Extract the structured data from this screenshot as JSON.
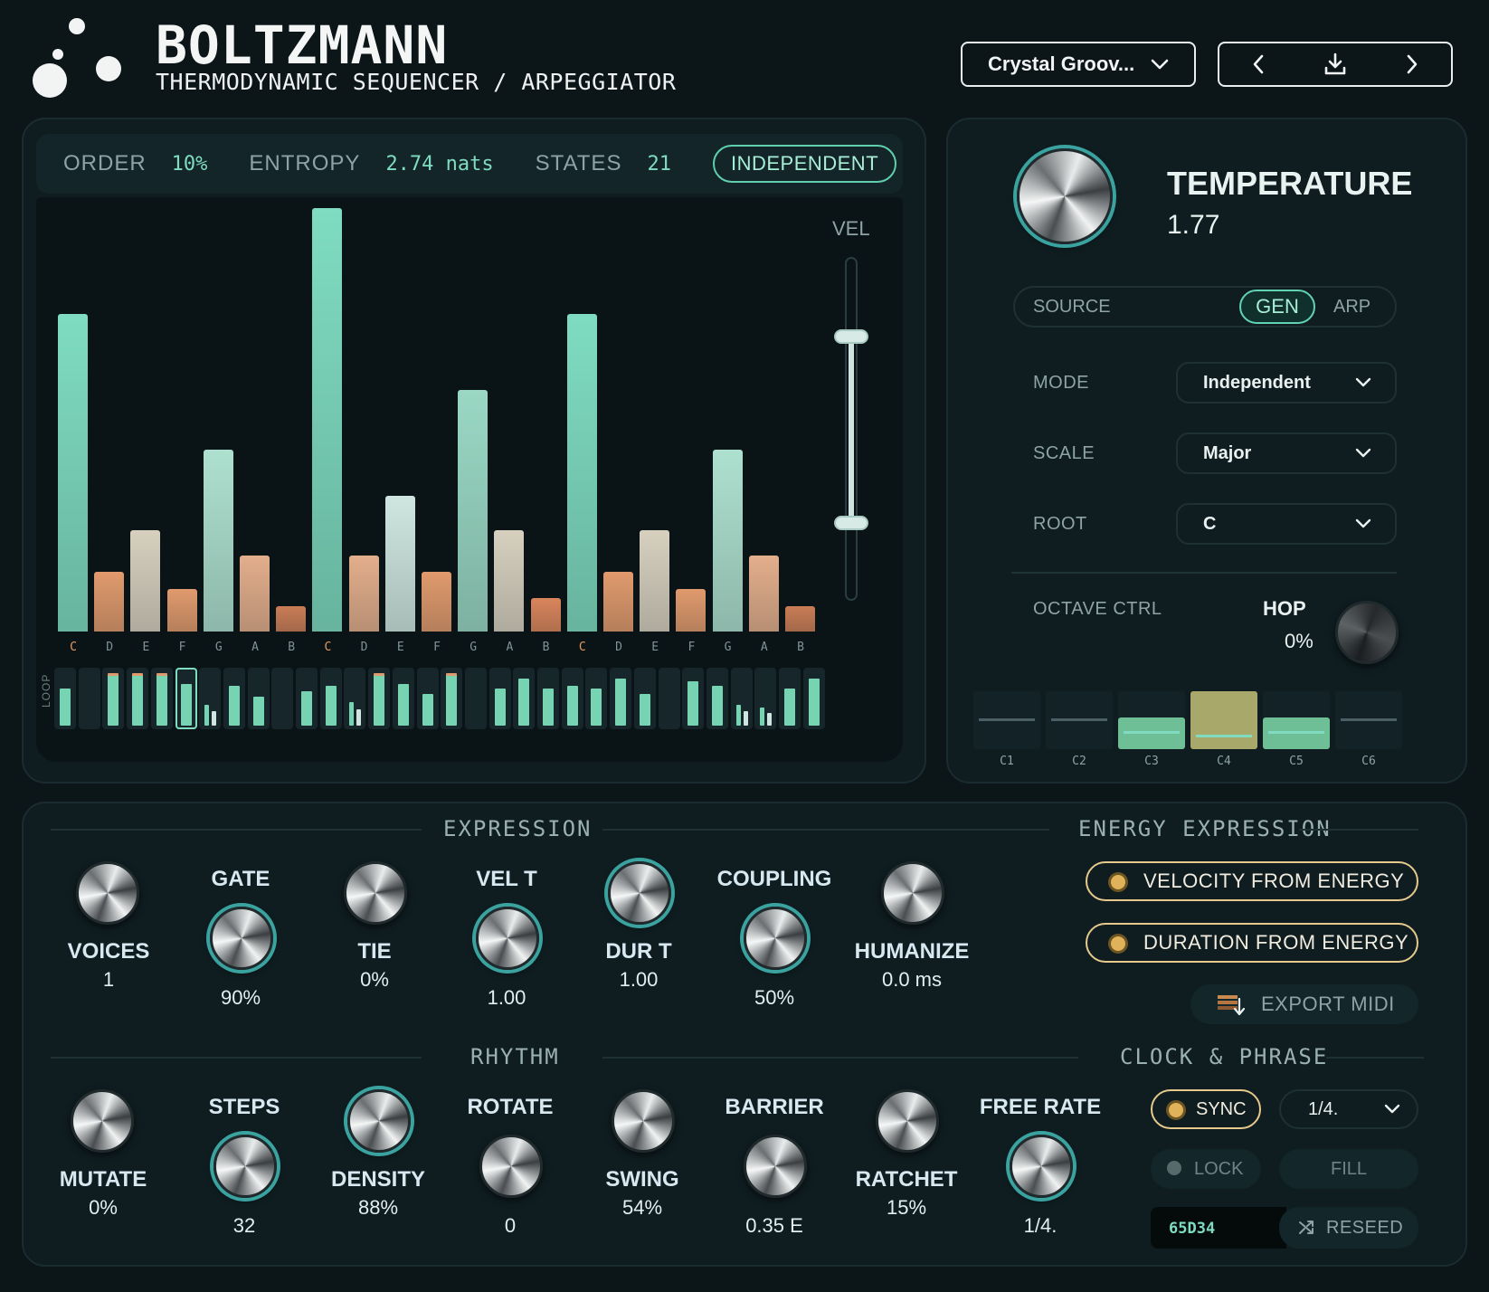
{
  "header": {
    "brand": "BOLTZMANN",
    "subtitle": "THERMODYNAMIC SEQUENCER / ARPEGGIATOR",
    "preset": "Crystal Groov...",
    "icons": [
      "chevron-down-icon",
      "chevron-left-icon",
      "download-icon",
      "chevron-right-icon"
    ]
  },
  "stats": {
    "order_label": "ORDER",
    "order_value": "10%",
    "entropy_label": "ENTROPY",
    "entropy_value": "2.74 nats",
    "states_label": "STATES",
    "states_value": "21",
    "mode_pill": "INDEPENDENT"
  },
  "distribution": {
    "vel_label": "VEL",
    "loop_label": "LOOP",
    "notes": [
      "C",
      "D",
      "E",
      "F",
      "G",
      "A",
      "B",
      "C",
      "D",
      "E",
      "F",
      "G",
      "A",
      "B",
      "C",
      "D",
      "E",
      "F",
      "G",
      "A",
      "B"
    ],
    "root_flags": [
      1,
      0,
      0,
      0,
      0,
      0,
      0,
      1,
      0,
      0,
      0,
      0,
      0,
      0,
      1,
      0,
      0,
      0,
      0,
      0,
      0
    ],
    "probabilities": [
      0.75,
      0.14,
      0.24,
      0.1,
      0.43,
      0.18,
      0.06,
      1.0,
      0.18,
      0.32,
      0.14,
      0.57,
      0.24,
      0.08,
      0.75,
      0.14,
      0.24,
      0.1,
      0.43,
      0.18,
      0.06
    ],
    "bar_colors": [
      "#7fdcc0",
      "#e09a6d",
      "#d7d0bf",
      "#e09a6d",
      "#aee0cf",
      "#e3ae8c",
      "#c97d56",
      "#7fdcc0",
      "#e3ae8c",
      "#cfe6e0",
      "#e09a6d",
      "#9ad8c4",
      "#d7d0bf",
      "#d9855c",
      "#7fdcc0",
      "#e09a6d",
      "#d7d0bf",
      "#e09a6d",
      "#aee0cf",
      "#e3ae8c",
      "#c97d56"
    ],
    "vel_range": [
      0.45,
      1.0
    ],
    "steps": [
      0.7,
      0.0,
      1.0,
      1.0,
      1.0,
      0.8,
      0.4,
      0.75,
      0.55,
      0.0,
      0.65,
      0.75,
      0.45,
      1.0,
      0.8,
      0.6,
      1.0,
      0.0,
      0.7,
      0.9,
      0.7,
      0.75,
      0.7,
      0.9,
      0.6,
      0.0,
      0.85,
      0.75,
      0.4,
      0.35,
      0.7,
      0.9
    ],
    "selected_step": 5
  },
  "temperature": {
    "title": "TEMPERATURE",
    "value": "1.77",
    "source_label": "SOURCE",
    "source_gen": "GEN",
    "source_arp": "ARP",
    "mode_label": "MODE",
    "mode_value": "Independent",
    "scale_label": "SCALE",
    "scale_value": "Major",
    "root_label": "ROOT",
    "root_value": "C",
    "octave_label": "OCTAVE CTRL",
    "hop_label": "HOP",
    "hop_value": "0%",
    "octaves": [
      "C1",
      "C2",
      "C3",
      "C4",
      "C5",
      "C6"
    ],
    "octave_levels": [
      0,
      0,
      0.55,
      1.0,
      0.55,
      0
    ]
  },
  "expression": {
    "title": "EXPRESSION",
    "voices_label": "VOICES",
    "voices_value": "1",
    "gate_label": "GATE",
    "gate_value": "90%",
    "tie_label": "TIE",
    "tie_value": "0%",
    "velt_label": "VEL T",
    "velt_value": "1.00",
    "durt_label": "DUR T",
    "durt_value": "1.00",
    "coupling_label": "COUPLING",
    "coupling_value": "50%",
    "humanize_label": "HUMANIZE",
    "humanize_value": "0.0 ms"
  },
  "energy": {
    "title": "ENERGY EXPRESSION",
    "velocity_btn": "VELOCITY FROM ENERGY",
    "duration_btn": "DURATION FROM ENERGY",
    "export_btn": "EXPORT MIDI"
  },
  "rhythm": {
    "title": "RHYTHM",
    "mutate_label": "MUTATE",
    "mutate_value": "0%",
    "steps_label": "STEPS",
    "steps_value": "32",
    "density_label": "DENSITY",
    "density_value": "88%",
    "rotate_label": "ROTATE",
    "rotate_value": "0",
    "swing_label": "SWING",
    "swing_value": "54%",
    "barrier_label": "BARRIER",
    "barrier_value": "0.35 E",
    "ratchet_label": "RATCHET",
    "ratchet_value": "15%",
    "freerate_label": "FREE RATE",
    "freerate_value": "1/4."
  },
  "clock": {
    "title": "CLOCK & PHRASE",
    "sync": "SYNC",
    "rate": "1/4.",
    "lock": "LOCK",
    "fill": "FILL",
    "seed": "65D34",
    "reseed": "RESEED"
  }
}
